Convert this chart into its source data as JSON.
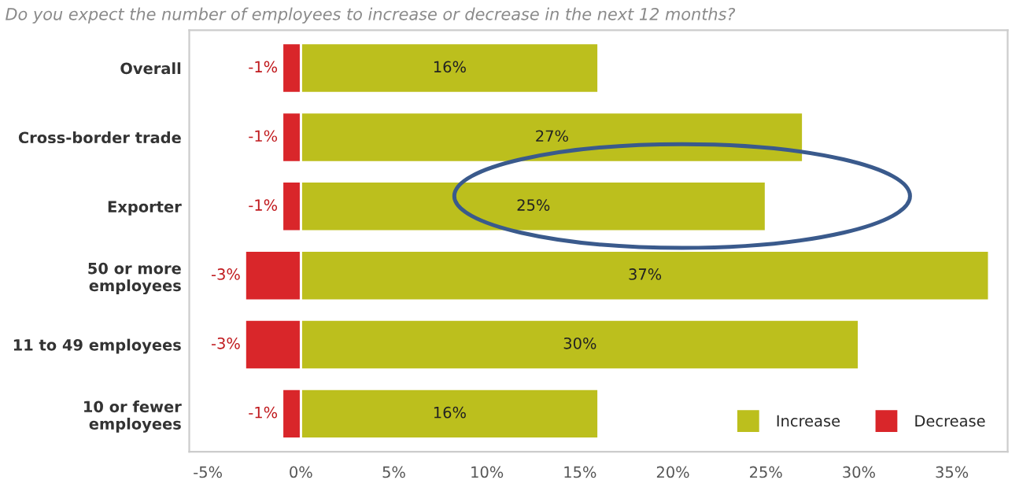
{
  "chart_data": {
    "type": "bar",
    "orientation": "horizontal",
    "stacked": true,
    "title": "Do you expect the number of employees to increase or decrease in the next 12 months?",
    "categories": [
      "Overall",
      "Cross-border trade",
      "Exporter",
      "50 or more\nemployees",
      "11 to 49 employees",
      "10 or fewer\nemployees"
    ],
    "series": [
      {
        "name": "Increase",
        "color": "#bcbf1d",
        "values": [
          16,
          27,
          25,
          37,
          30,
          16
        ],
        "value_labels": [
          "16%",
          "27%",
          "25%",
          "37%",
          "30%",
          "16%"
        ]
      },
      {
        "name": "Decrease",
        "color": "#d9262a",
        "values": [
          -1,
          -1,
          -1,
          -3,
          -3,
          -1
        ],
        "value_labels": [
          "-1%",
          "-1%",
          "-1%",
          "-3%",
          "-3%",
          "-1%"
        ]
      }
    ],
    "xlim": [
      -6,
      38
    ],
    "xticks": [
      {
        "value": -5,
        "label": "-5%"
      },
      {
        "value": 0,
        "label": "0%"
      },
      {
        "value": 5,
        "label": "5%"
      },
      {
        "value": 10,
        "label": "10%"
      },
      {
        "value": 15,
        "label": "15%"
      },
      {
        "value": 20,
        "label": "20%"
      },
      {
        "value": 25,
        "label": "25%"
      },
      {
        "value": 30,
        "label": "30%"
      },
      {
        "value": 35,
        "label": "35%"
      }
    ],
    "grid": false,
    "legend": "bottom right"
  }
}
